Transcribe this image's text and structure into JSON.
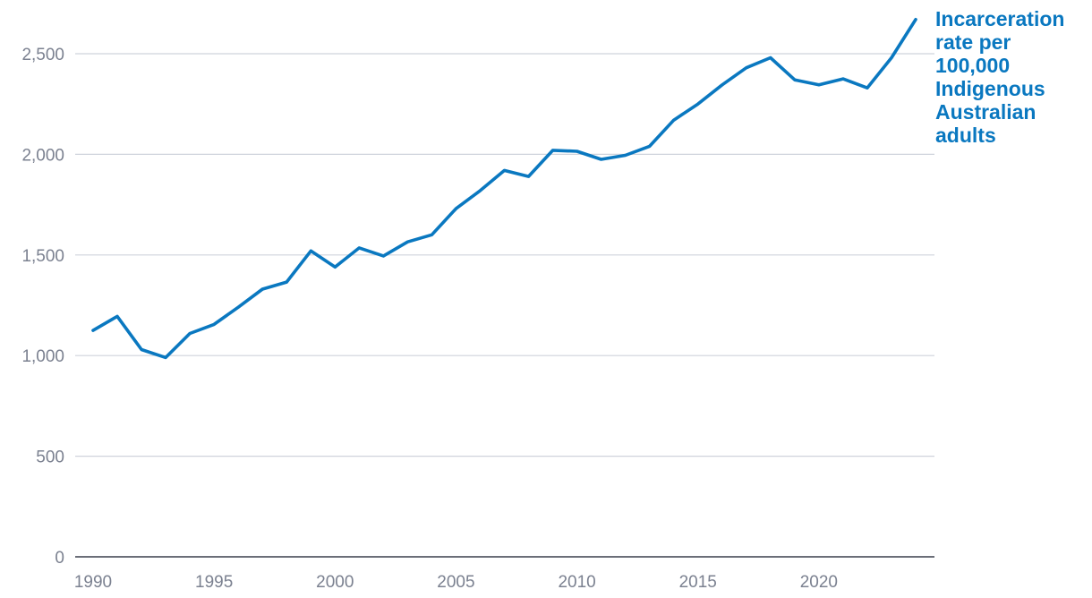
{
  "chart_data": {
    "type": "line",
    "title": "",
    "xlabel": "",
    "ylabel": "",
    "xlim": [
      1990,
      2024
    ],
    "ylim": [
      0,
      2500
    ],
    "x_ticks": [
      {
        "value": 1990,
        "label": "1990"
      },
      {
        "value": 1995,
        "label": "1995"
      },
      {
        "value": 2000,
        "label": "2000"
      },
      {
        "value": 2005,
        "label": "2005"
      },
      {
        "value": 2010,
        "label": "2010"
      },
      {
        "value": 2015,
        "label": "2015"
      },
      {
        "value": 2020,
        "label": "2020"
      }
    ],
    "y_ticks": [
      {
        "value": 0,
        "label": "0"
      },
      {
        "value": 500,
        "label": "500"
      },
      {
        "value": 1000,
        "label": "1,000"
      },
      {
        "value": 1500,
        "label": "1,500"
      },
      {
        "value": 2000,
        "label": "2,000"
      },
      {
        "value": 2500,
        "label": "2,500"
      }
    ],
    "grid": "horizontal",
    "legend": "none",
    "x": [
      1990,
      1991,
      1992,
      1993,
      1994,
      1995,
      1996,
      1997,
      1998,
      1999,
      2000,
      2001,
      2002,
      2003,
      2004,
      2005,
      2006,
      2007,
      2008,
      2009,
      2010,
      2011,
      2012,
      2013,
      2014,
      2015,
      2016,
      2017,
      2018,
      2019,
      2020,
      2021,
      2022,
      2023,
      2024
    ],
    "series": [
      {
        "name": "Incarceration rate per 100,000 Indigenous Australian adults",
        "label_lines": [
          "Incarceration",
          "rate per",
          "100,000",
          "Indigenous",
          "Australian",
          "adults"
        ],
        "color": "#0a78c0",
        "values": [
          1125,
          1195,
          1030,
          990,
          1110,
          1155,
          1240,
          1330,
          1365,
          1520,
          1440,
          1535,
          1495,
          1565,
          1600,
          1730,
          1820,
          1920,
          1890,
          2020,
          2015,
          1975,
          1995,
          2040,
          2170,
          2250,
          2345,
          2430,
          2480,
          2370,
          2345,
          2375,
          2330,
          2480,
          2670
        ]
      }
    ]
  }
}
